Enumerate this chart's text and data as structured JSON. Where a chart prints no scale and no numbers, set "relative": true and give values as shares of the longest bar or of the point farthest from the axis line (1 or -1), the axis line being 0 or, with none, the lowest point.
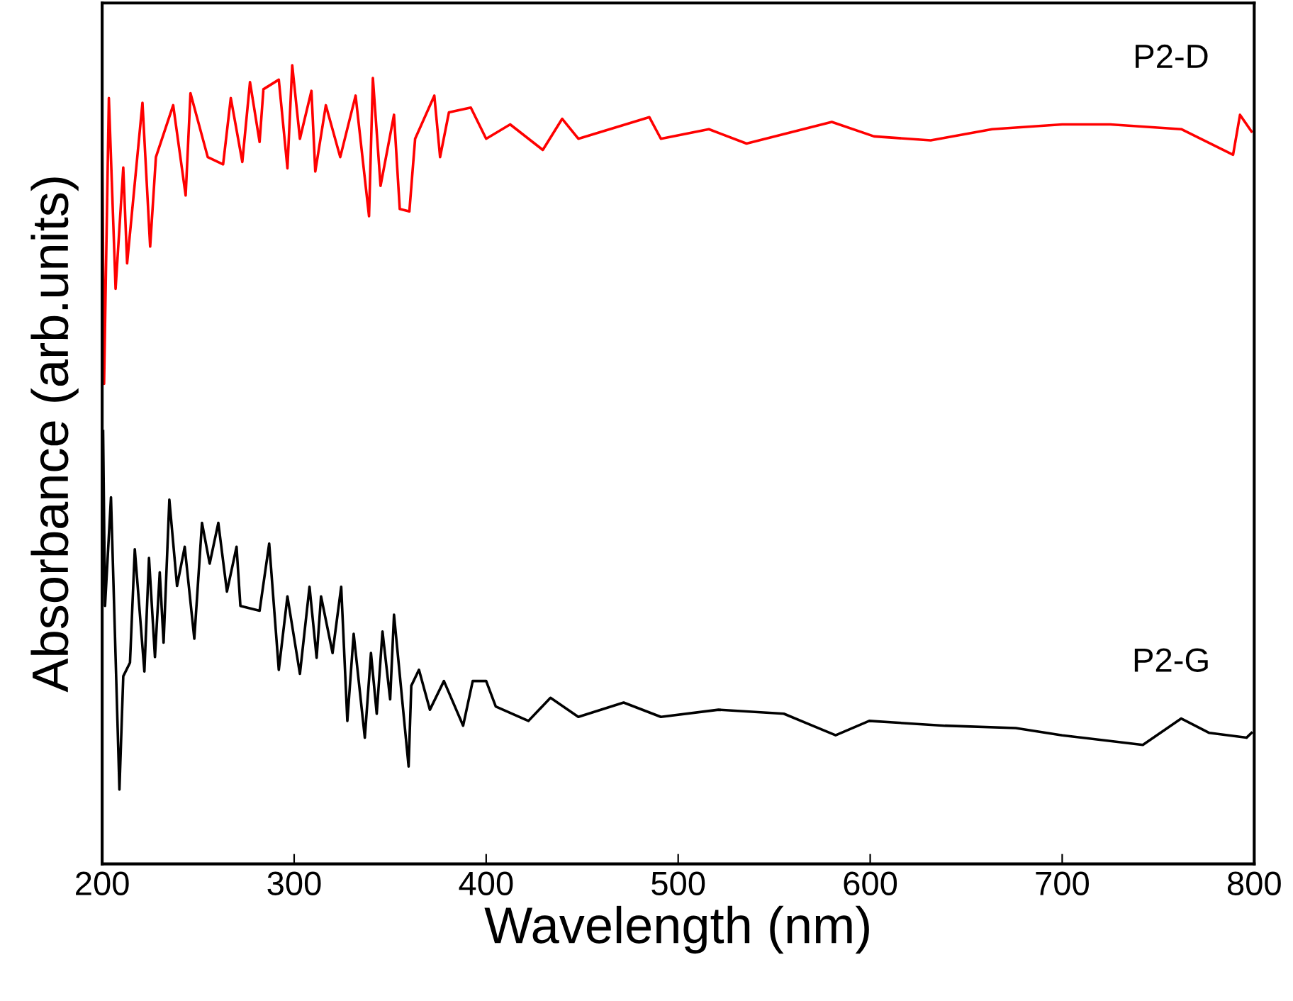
{
  "chart_data": {
    "type": "line",
    "xlabel": "Wavelength (nm)",
    "ylabel": "Absorbance (arb.units)",
    "relative": true,
    "xlim": [
      200,
      800
    ],
    "xticks": [
      200,
      300,
      400,
      500,
      600,
      700,
      800
    ],
    "grid": false,
    "legend": false,
    "marker": "none",
    "line_style": "solid",
    "tick_labels": "x",
    "series": [
      {
        "name": "P2-D",
        "color": "#ff0000",
        "x": [
          200,
          201,
          203.5,
          207,
          211,
          213,
          221,
          225,
          228,
          237,
          243.5,
          246,
          255,
          263,
          267,
          273,
          277,
          282,
          284,
          292,
          296.5,
          299,
          303,
          309,
          311,
          316.5,
          324,
          332,
          339,
          341,
          345,
          352,
          355,
          360,
          363,
          373,
          376,
          380.6,
          392,
          400,
          412.5,
          429.5,
          439.6,
          448,
          485,
          491,
          516,
          535.6,
          580,
          602,
          631.5,
          663.5,
          700,
          725,
          762,
          789,
          792.6,
          798.6
        ],
        "values": [
          0.908,
          0.601,
          0.959,
          0.72,
          0.872,
          0.752,
          0.953,
          0.773,
          0.885,
          0.95,
          0.837,
          0.965,
          0.885,
          0.876,
          0.959,
          0.879,
          0.979,
          0.904,
          0.97,
          0.982,
          0.871,
          1,
          0.908,
          0.968,
          0.867,
          0.95,
          0.885,
          0.962,
          0.811,
          0.984,
          0.849,
          0.938,
          0.82,
          0.817,
          0.908,
          0.962,
          0.885,
          0.941,
          0.947,
          0.908,
          0.926,
          0.894,
          0.933,
          0.908,
          0.935,
          0.908,
          0.92,
          0.902,
          0.929,
          0.911,
          0.906,
          0.92,
          0.926,
          0.926,
          0.92,
          0.888,
          0.938,
          0.917
        ]
      },
      {
        "name": "P2-G",
        "color": "#000000",
        "x": [
          200.5,
          201.5,
          204.6,
          209,
          211,
          214.5,
          217,
          222,
          224.4,
          227.5,
          230,
          232,
          235,
          239,
          243,
          248,
          252,
          256,
          260.5,
          265,
          270,
          272,
          282,
          287,
          292,
          296.5,
          303,
          308,
          311.7,
          314,
          320,
          324.5,
          327.7,
          331,
          336.8,
          340,
          343,
          346,
          350,
          352,
          359.6,
          361,
          365,
          370.7,
          378,
          388,
          393,
          400,
          405,
          422,
          433.5,
          448,
          471.6,
          491,
          521,
          555,
          582,
          599.5,
          639,
          675.8,
          700,
          742,
          762,
          776.6,
          796,
          798.6
        ],
        "values": [
          0.542,
          0.323,
          0.459,
          0.093,
          0.235,
          0.252,
          0.394,
          0.241,
          0.383,
          0.259,
          0.365,
          0.277,
          0.456,
          0.348,
          0.397,
          0.282,
          0.427,
          0.376,
          0.427,
          0.341,
          0.397,
          0.323,
          0.317,
          0.401,
          0.243,
          0.335,
          0.238,
          0.347,
          0.258,
          0.335,
          0.264,
          0.347,
          0.179,
          0.288,
          0.158,
          0.264,
          0.188,
          0.291,
          0.206,
          0.312,
          0.122,
          0.223,
          0.243,
          0.193,
          0.229,
          0.173,
          0.229,
          0.229,
          0.197,
          0.179,
          0.208,
          0.184,
          0.202,
          0.184,
          0.193,
          0.188,
          0.161,
          0.179,
          0.173,
          0.17,
          0.161,
          0.149,
          0.182,
          0.164,
          0.158,
          0.164
        ]
      }
    ]
  }
}
